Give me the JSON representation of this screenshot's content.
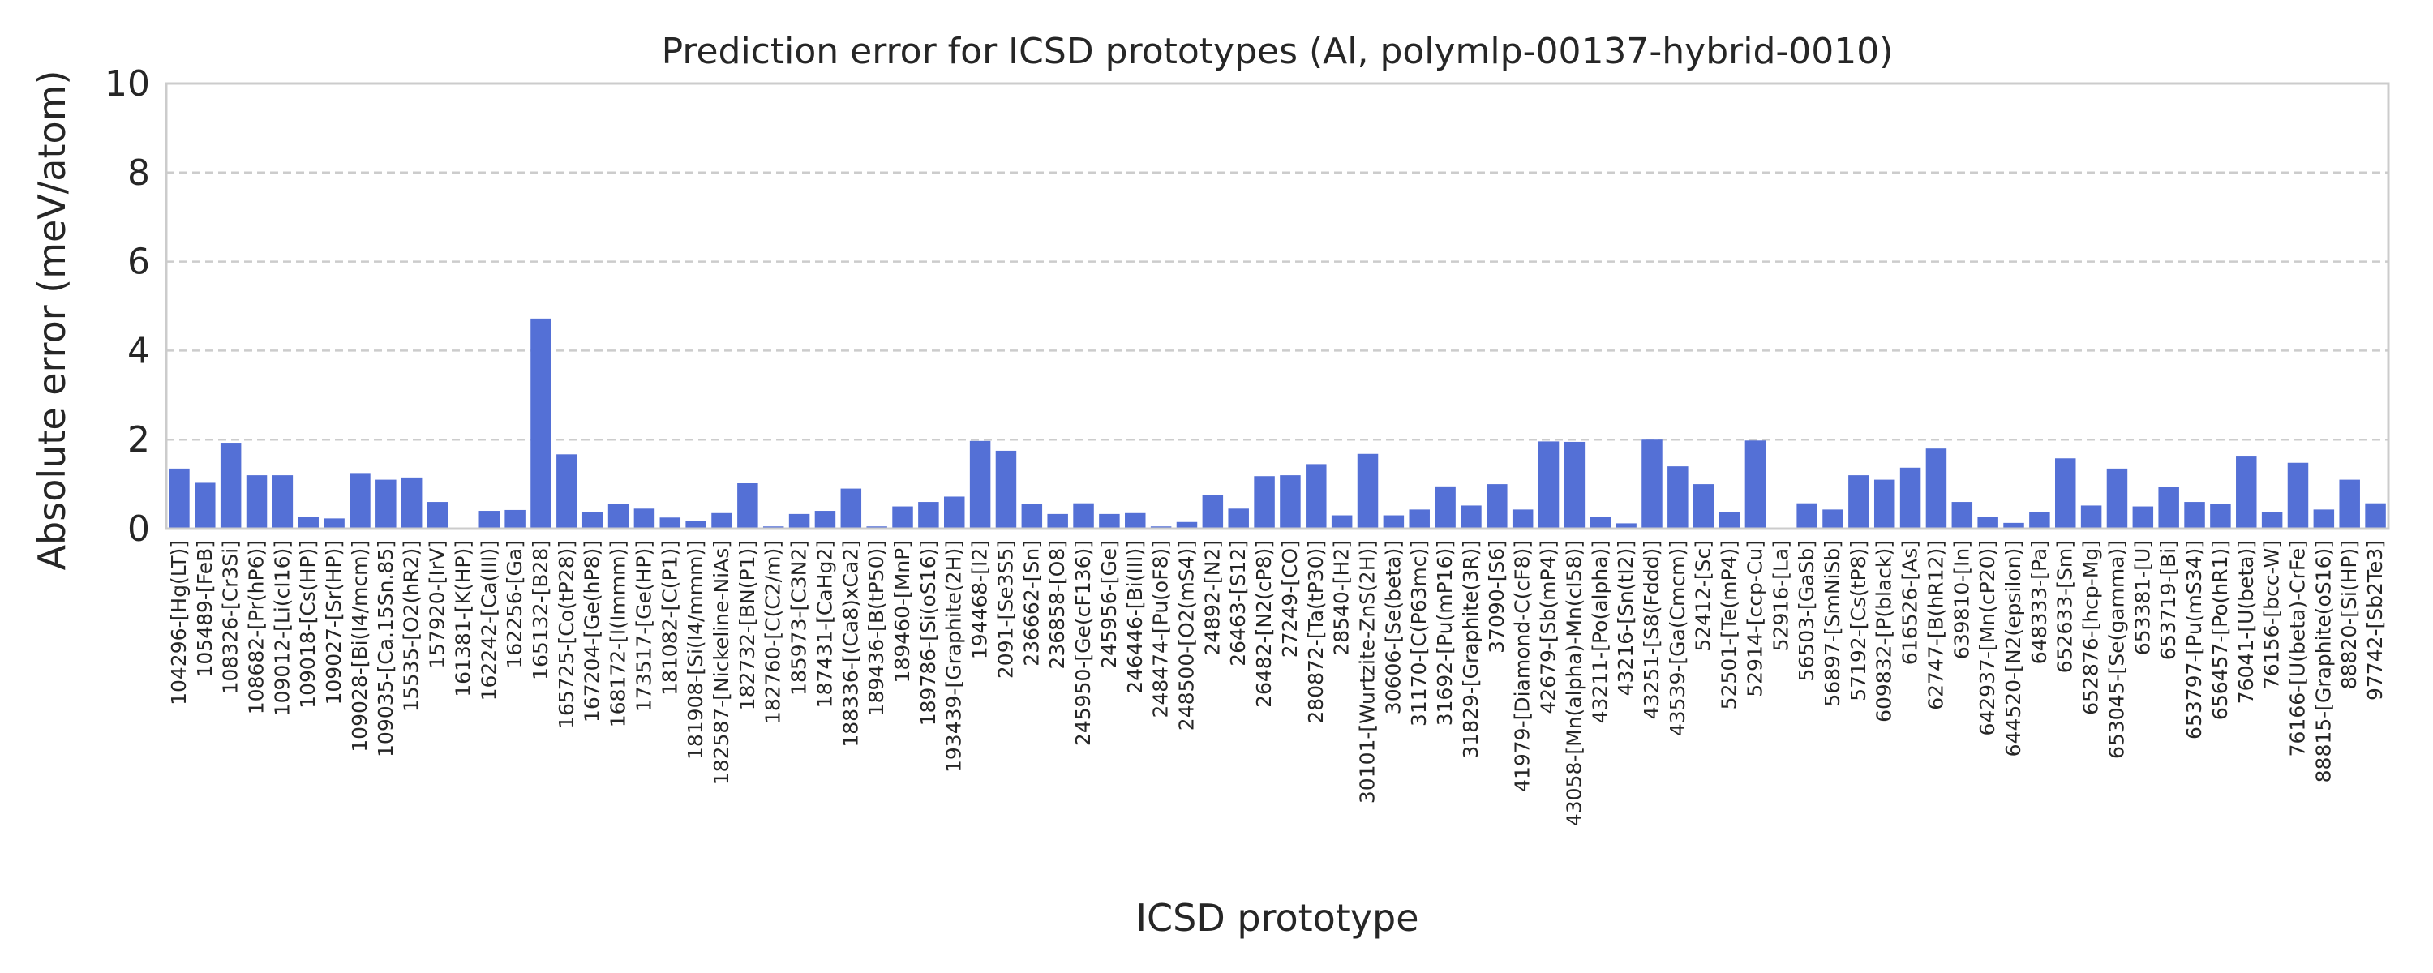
{
  "chart_data": {
    "type": "bar",
    "title": "Prediction error for ICSD prototypes (Al, polymlp-00137-hybrid-0010)",
    "xlabel": "ICSD prototype",
    "ylabel": "Absolute error (meV/atom)",
    "ylim": [
      0,
      10
    ],
    "yticks": [
      "0",
      "2",
      "4",
      "6",
      "8",
      "10"
    ],
    "grid": "horizontal dashed",
    "bar_color": "#5470d6",
    "categories": [
      "104296-[Hg(LT)]",
      "105489-[FeB]",
      "108326-[Cr3Si]",
      "108682-[Pr(hP6)]",
      "109012-[Li(cI16)]",
      "109018-[Cs(HP)]",
      "109027-[Sr(HP)]",
      "109028-[Bi(I4/mcm)]",
      "109035-[Ca.15Sn.85]",
      "15535-[O2(hR2)]",
      "157920-[IrV]",
      "161381-[K(HP)]",
      "162242-[Ca(III)]",
      "162256-[Ga]",
      "165132-[B28]",
      "165725-[Co(tP28)]",
      "167204-[Ge(hP8)]",
      "168172-[I(Immm)]",
      "173517-[Ge(HP)]",
      "181082-[C(P1)]",
      "181908-[Si(I4/mmm)]",
      "182587-[Nickeline-NiAs]",
      "182732-[BN(P1)]",
      "182760-[C(C2/m)]",
      "185973-[C3N2]",
      "187431-[CaHg2]",
      "188336-[(Ca8)xCa2]",
      "189436-[B(tP50)]",
      "189460-[MnP]",
      "189786-[Si(oS16)]",
      "193439-[Graphite(2H)]",
      "194468-[I2]",
      "2091-[Se3S5]",
      "236662-[Sn]",
      "236858-[O8]",
      "245950-[Ge(cF136)]",
      "245956-[Ge]",
      "246446-[Bi(III)]",
      "248474-[Pu(oF8)]",
      "248500-[O2(mS4)]",
      "24892-[N2]",
      "26463-[S12]",
      "26482-[N2(cP8)]",
      "27249-[CO]",
      "280872-[Ta(tP30)]",
      "28540-[H2]",
      "30101-[Wurtzite-ZnS(2H)]",
      "30606-[Se(beta)]",
      "31170-[C(P63mc)]",
      "31692-[Pu(mP16)]",
      "31829-[Graphite(3R)]",
      "37090-[S6]",
      "41979-[Diamond-C(cF8)]",
      "42679-[Sb(mP4)]",
      "43058-[Mn(alpha)-Mn(cI58)]",
      "43211-[Po(alpha)]",
      "43216-[Sn(tI2)]",
      "43251-[S8(Fddd)]",
      "43539-[Ga(Cmcm)]",
      "52412-[Sc]",
      "52501-[Te(mP4)]",
      "52914-[ccp-Cu]",
      "52916-[La]",
      "56503-[GaSb]",
      "56897-[SmNiSb]",
      "57192-[Cs(tP8)]",
      "609832-[P(black)]",
      "616526-[As]",
      "62747-[B(hR12)]",
      "639810-[In]",
      "642937-[Mn(cP20)]",
      "644520-[N2(epsilon)]",
      "648333-[Pa]",
      "652633-[Sm]",
      "652876-[hcp-Mg]",
      "653045-[Se(gamma)]",
      "653381-[U]",
      "653719-[Bi]",
      "653797-[Pu(mS34)]",
      "656457-[Po(hR1)]",
      "76041-[U(beta)]",
      "76156-[bcc-W]",
      "76166-[U(beta)-CrFe]",
      "88815-[Graphite(oS16)]",
      "88820-[Si(HP)]",
      "97742-[Sb2Te3]"
    ],
    "values": [
      1.35,
      1.03,
      1.93,
      1.2,
      1.2,
      0.27,
      0.23,
      1.25,
      1.1,
      1.15,
      0.6,
      0.02,
      0.4,
      0.42,
      4.72,
      1.67,
      0.37,
      0.55,
      0.45,
      0.25,
      0.18,
      0.35,
      1.02,
      0.05,
      0.33,
      0.4,
      0.9,
      0.05,
      0.5,
      0.6,
      0.72,
      1.97,
      1.75,
      0.55,
      0.33,
      0.57,
      0.33,
      0.35,
      0.05,
      0.15,
      0.75,
      0.45,
      1.18,
      1.2,
      1.45,
      0.3,
      1.68,
      0.3,
      0.43,
      0.95,
      0.52,
      1.0,
      0.43,
      1.96,
      1.95,
      0.27,
      0.12,
      2.0,
      1.4,
      1.0,
      0.38,
      1.98,
      0.02,
      0.57,
      0.43,
      1.2,
      1.1,
      1.37,
      1.8,
      0.6,
      0.27,
      0.13,
      0.38,
      1.58,
      0.52,
      1.35,
      0.5,
      0.93,
      0.6,
      0.55,
      1.62,
      0.38,
      1.48,
      0.43,
      1.1,
      0.57
    ]
  }
}
